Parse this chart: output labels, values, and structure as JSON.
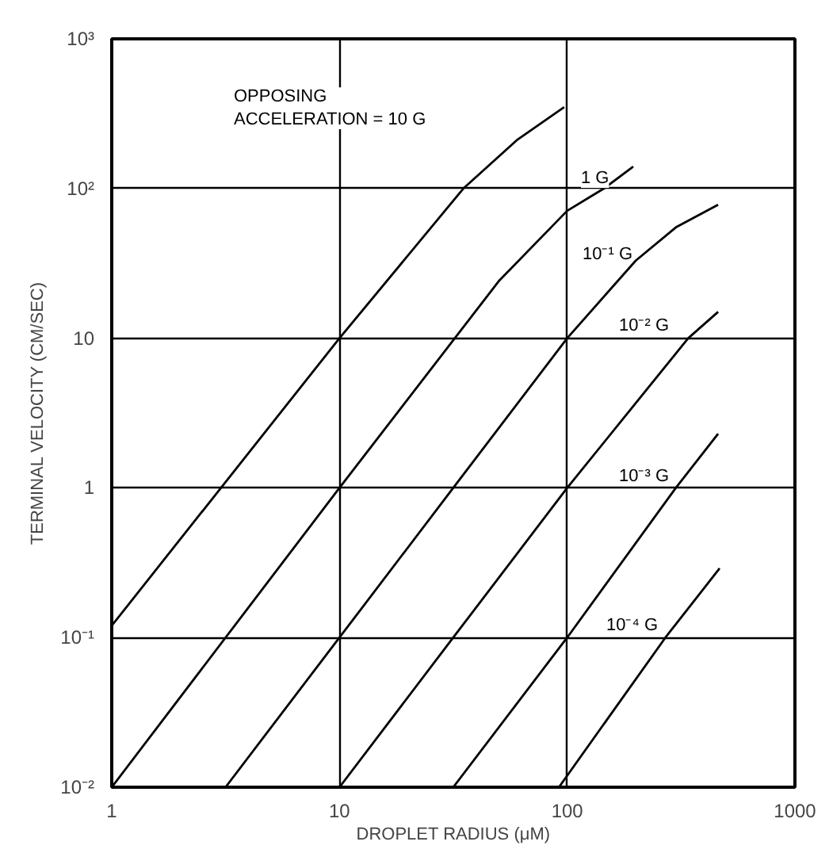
{
  "chart_data": {
    "type": "line",
    "xlabel": "DROPLET RADIUS (μM)",
    "ylabel": "TERMINAL VELOCITY (CM/SEC)",
    "log": "xy",
    "grid": true,
    "xlim": [
      1,
      1000
    ],
    "xticks": [
      1,
      10,
      100,
      1000
    ],
    "ylim": [
      0.01,
      1000
    ],
    "yticks": [
      {
        "value": 0.01,
        "label": "10⁻²"
      },
      {
        "value": 0.1,
        "label": "10⁻¹"
      },
      1,
      10,
      {
        "value": 100,
        "label": "10²"
      },
      {
        "value": 1000,
        "label": "10³"
      }
    ],
    "series": [
      {
        "color": "#000000",
        "x": [
          1,
          10,
          35,
          60,
          97
        ],
        "values": [
          0.12,
          10,
          100,
          210,
          350
        ]
      },
      {
        "color": "#000000",
        "x": [
          1,
          10,
          50,
          100,
          145,
          195
        ],
        "values": [
          0.01,
          1,
          24,
          71,
          100,
          140
        ]
      },
      {
        "color": "#000000",
        "x": [
          3.16,
          10,
          31.6,
          100,
          200,
          300,
          460
        ],
        "values": [
          0.01,
          0.1,
          1,
          10,
          33,
          55,
          78
        ]
      },
      {
        "color": "#000000",
        "x": [
          10,
          31.6,
          100,
          340,
          460
        ],
        "values": [
          0.01,
          0.1,
          1,
          10,
          15
        ]
      },
      {
        "color": "#000000",
        "x": [
          31.6,
          100,
          300,
          460
        ],
        "values": [
          0.01,
          0.1,
          1,
          2.3
        ]
      },
      {
        "color": "#000000",
        "x": [
          92,
          270,
          467
        ],
        "values": [
          0.01,
          0.1,
          0.29
        ]
      }
    ],
    "annotations": [
      "OPPOSING\nACCELERATION = 10 G",
      "1 G",
      "10⁻¹ G",
      "10⁻² G",
      "10⁻³ G",
      "10⁻⁴ G"
    ]
  }
}
